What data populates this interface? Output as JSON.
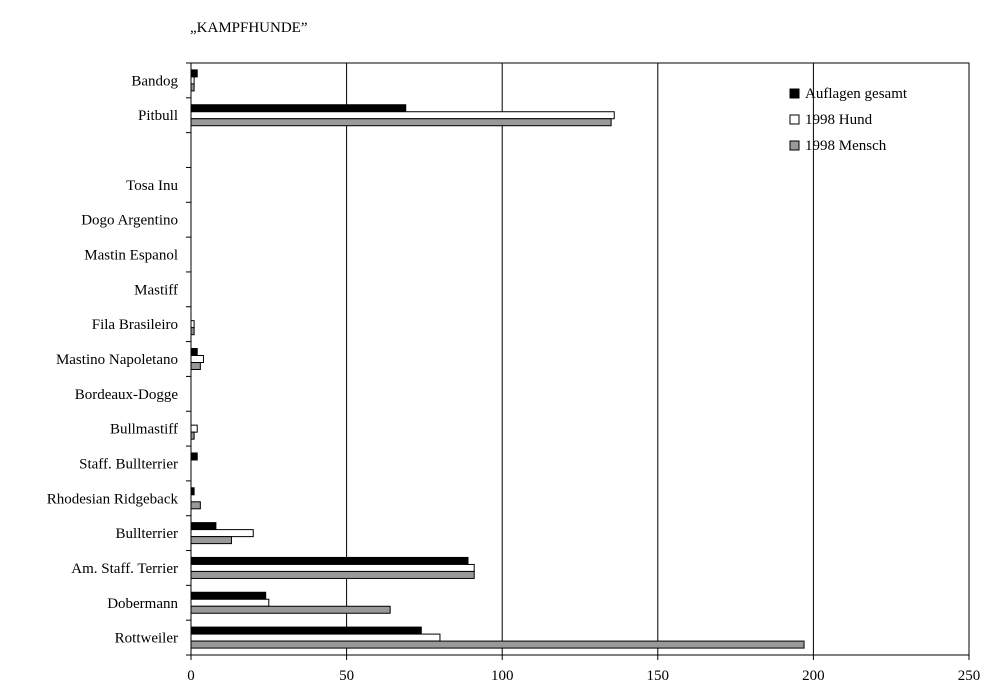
{
  "chart_data": {
    "type": "bar",
    "orientation": "horizontal",
    "title": "„KAMPFHUNDE”",
    "xlabel": "",
    "ylabel": "",
    "xlim": [
      0,
      250
    ],
    "xticks": [
      0,
      50,
      100,
      150,
      200,
      250
    ],
    "grid": "vertical",
    "legend_position": "top-right",
    "categories": [
      "Bandog",
      "Pitbull",
      "",
      "Tosa Inu",
      "Dogo Argentino",
      "Mastin Espanol",
      "Mastiff",
      "Fila Brasileiro",
      "Mastino Napoletano",
      "Bordeaux-Dogge",
      "Bullmastiff",
      "Staff. Bullterrier",
      "Rhodesian Ridgeback",
      "Bullterrier",
      "Am. Staff. Terrier",
      "Dobermann",
      "Rottweiler"
    ],
    "series": [
      {
        "name": "Auflagen gesamt",
        "color": "#000000",
        "values": [
          2,
          69,
          0,
          0,
          0,
          0,
          0,
          0,
          2,
          0,
          0,
          2,
          1,
          8,
          89,
          24,
          74
        ]
      },
      {
        "name": "1998 Hund",
        "color": "#ffffff",
        "values": [
          1,
          136,
          0,
          0,
          0,
          0,
          0,
          1,
          4,
          0,
          2,
          0,
          0,
          20,
          91,
          25,
          80
        ]
      },
      {
        "name": "1998 Mensch",
        "color": "#999999",
        "values": [
          1,
          135,
          0,
          0,
          0,
          0,
          0,
          1,
          3,
          0,
          1,
          0,
          3,
          13,
          91,
          64,
          197
        ]
      }
    ]
  }
}
